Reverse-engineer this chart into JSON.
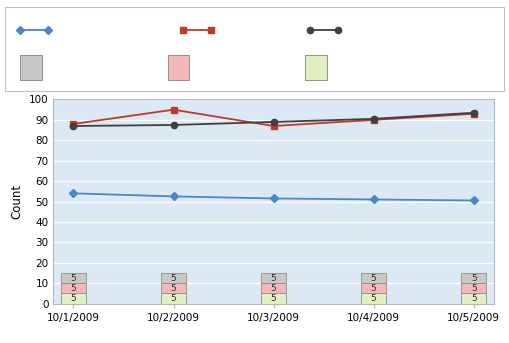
{
  "x_labels": [
    "10/1/2009",
    "10/2/2009",
    "10/3/2009",
    "10/4/2009",
    "10/5/2009"
  ],
  "active_bugs": [
    54,
    52.5,
    51.5,
    51,
    50.5
  ],
  "code_churn": [
    88,
    95,
    87,
    90,
    93
  ],
  "code_coverage": [
    87,
    87.5,
    89,
    90.5,
    93.5
  ],
  "active_bugs_color": "#4a86c8",
  "code_churn_color": "#c0392b",
  "code_coverage_color": "#404040",
  "bg_color": "#dce9f5",
  "ylabel": "Count",
  "ylim": [
    0,
    100
  ],
  "yticks": [
    0,
    10,
    20,
    30,
    40,
    50,
    60,
    70,
    80,
    90,
    100
  ],
  "box_inconclusive_bg": "#c8c8c8",
  "box_failed_bg": "#f4b8b8",
  "box_passed_bg": "#e0f0c0",
  "box_border": "#909090",
  "legend_border": "#c8c8c8",
  "legend_bg": "#ffffff",
  "grid_color": "#ffffff",
  "spine_color": "#b0b8c8"
}
